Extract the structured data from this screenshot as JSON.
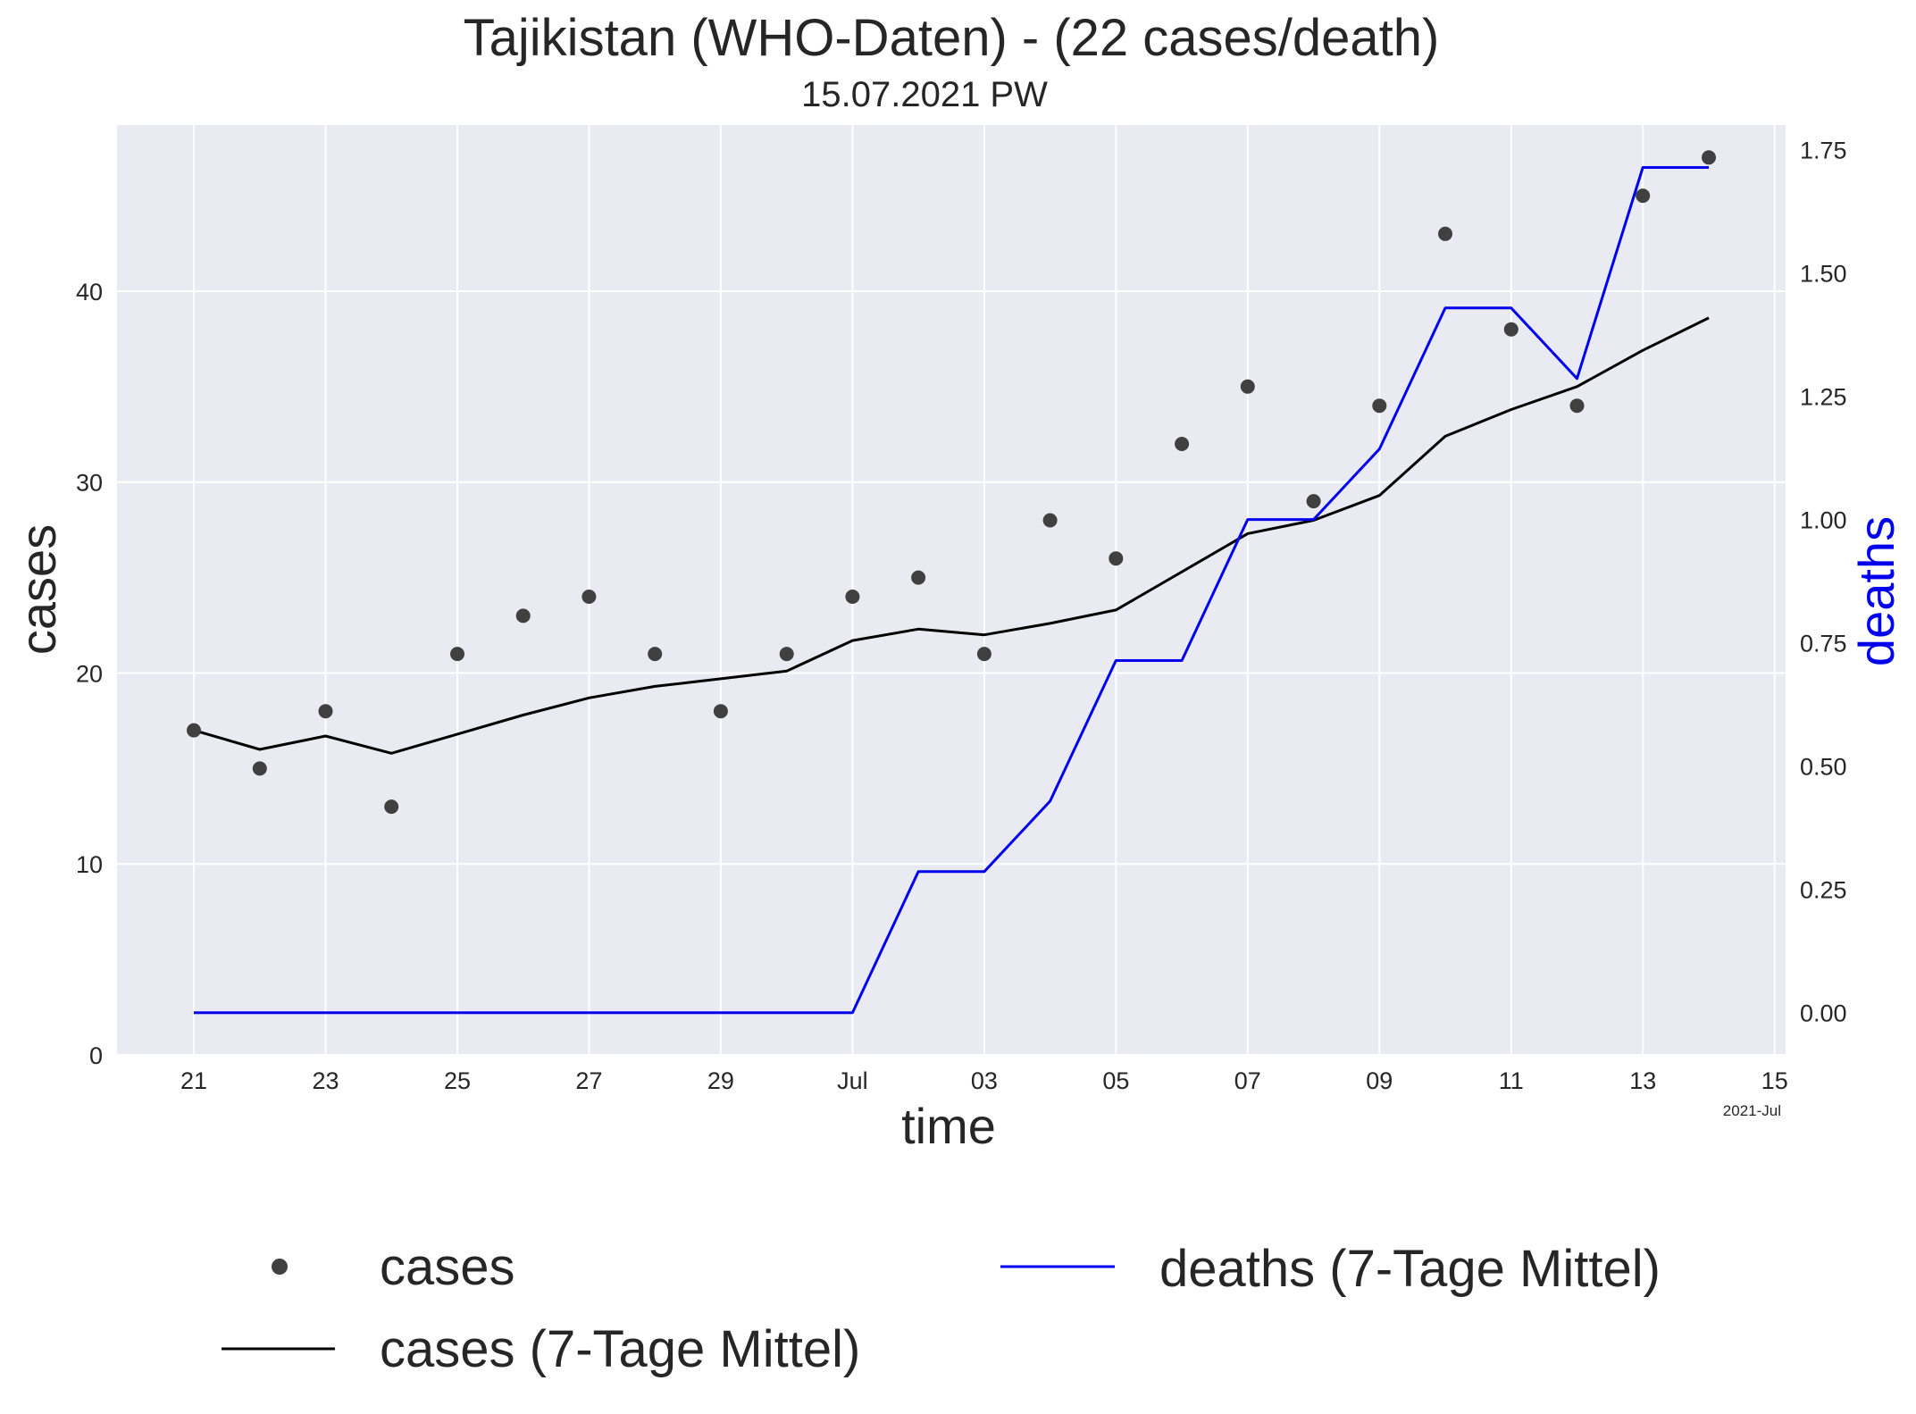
{
  "chart_data": {
    "type": "line",
    "title": "Tajikistan (WHO-Daten) - (22 cases/death)",
    "subtitle": "15.07.2021 PW",
    "xlabel": "time",
    "ylabel": "cases",
    "y2label": "deaths",
    "x_offset_label": "2021-Jul",
    "dates": [
      "2021-06-21",
      "2021-06-22",
      "2021-06-23",
      "2021-06-24",
      "2021-06-25",
      "2021-06-26",
      "2021-06-27",
      "2021-06-28",
      "2021-06-29",
      "2021-06-30",
      "2021-07-01",
      "2021-07-02",
      "2021-07-03",
      "2021-07-04",
      "2021-07-05",
      "2021-07-06",
      "2021-07-07",
      "2021-07-08",
      "2021-07-09",
      "2021-07-10",
      "2021-07-11",
      "2021-07-12",
      "2021-07-13",
      "2021-07-14"
    ],
    "x_ticks": [
      "2021-06-21",
      "2021-06-23",
      "2021-06-25",
      "2021-06-27",
      "2021-06-29",
      "2021-07-01",
      "2021-07-03",
      "2021-07-05",
      "2021-07-07",
      "2021-07-09",
      "2021-07-11",
      "2021-07-13",
      "2021-07-15"
    ],
    "x_tick_labels": [
      "21",
      "23",
      "25",
      "27",
      "29",
      "Jul",
      "03",
      "05",
      "07",
      "09",
      "11",
      "13",
      "15"
    ],
    "xlim": [
      "2021-06-19 20:00",
      "2021-07-15 04:00"
    ],
    "ylim": [
      0,
      48.7
    ],
    "y_ticks": [
      0,
      10,
      20,
      30,
      40
    ],
    "y2lim": [
      -0.0857,
      1.8
    ],
    "y2_ticks": [
      0.0,
      0.25,
      0.5,
      0.75,
      1.0,
      1.25,
      1.5,
      1.75
    ],
    "y2_tick_labels": [
      "0.00",
      "0.25",
      "0.50",
      "0.75",
      "1.00",
      "1.25",
      "1.50",
      "1.75"
    ],
    "grid": true,
    "legend_position": "bottom",
    "series": [
      {
        "name": "cases",
        "kind": "scatter",
        "axis": "left",
        "color": "#404040",
        "values": [
          17,
          15,
          18,
          13,
          21,
          23,
          24,
          21,
          18,
          21,
          24,
          25,
          21,
          28,
          26,
          32,
          35,
          29,
          34,
          43,
          38,
          34,
          45,
          47
        ]
      },
      {
        "name": "cases (7-Tage Mittel)",
        "kind": "line",
        "axis": "left",
        "color": "#000000",
        "values": [
          17.0,
          16.0,
          16.7,
          15.8,
          16.8,
          17.8,
          18.7,
          19.3,
          19.7,
          20.1,
          21.7,
          22.3,
          22.0,
          22.6,
          23.3,
          25.3,
          27.3,
          28.0,
          29.3,
          32.4,
          33.8,
          35.0,
          36.9,
          38.6
        ]
      },
      {
        "name": "deaths (7-Tage Mittel)",
        "kind": "line",
        "axis": "right",
        "color": "#0000ee",
        "values": [
          0,
          0,
          0,
          0,
          0,
          0,
          0,
          0,
          0,
          0,
          0,
          0.286,
          0.286,
          0.429,
          0.714,
          0.714,
          1.0,
          1.0,
          1.143,
          1.429,
          1.429,
          1.286,
          1.714,
          1.714
        ]
      }
    ]
  },
  "colors": {
    "plot_background": "#eaeaf2",
    "grid": "#ffffff",
    "text": "#262626",
    "deaths_accent": "#0000ee"
  }
}
